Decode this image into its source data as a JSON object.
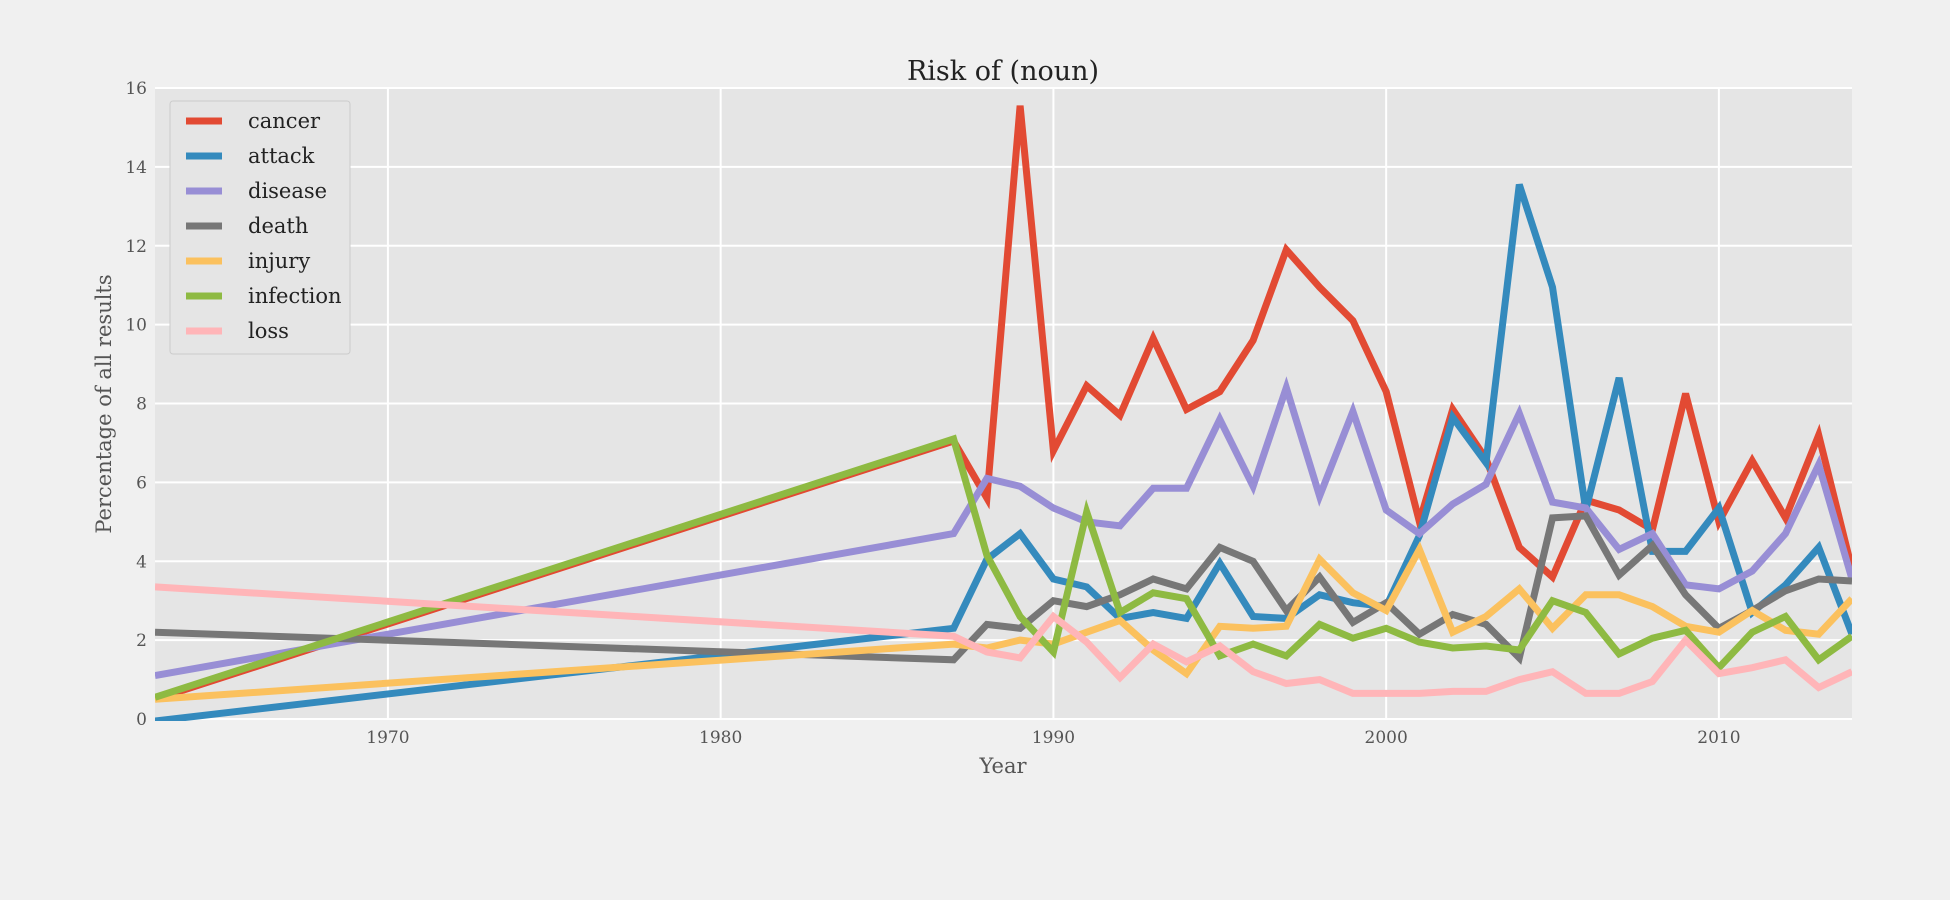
{
  "chart_data": {
    "type": "line",
    "title": "Risk of (noun)",
    "xlabel": "Year",
    "ylabel": "Percentage of all results",
    "xlim": [
      1963,
      2014
    ],
    "ylim": [
      0,
      16
    ],
    "xticks": [
      1970,
      1980,
      1990,
      2000,
      2010
    ],
    "yticks": [
      0,
      2,
      4,
      6,
      8,
      10,
      12,
      14,
      16
    ],
    "grid": true,
    "legend_position": "top-left",
    "x": [
      1963,
      1987,
      1988,
      1989,
      1990,
      1991,
      1992,
      1993,
      1994,
      1995,
      1996,
      1997,
      1998,
      1999,
      2000,
      2001,
      2002,
      2003,
      2004,
      2005,
      2006,
      2007,
      2008,
      2009,
      2010,
      2011,
      2012,
      2013,
      2014
    ],
    "series": [
      {
        "name": "cancer",
        "color": "#e24a33",
        "values": [
          0.5,
          7.05,
          5.6,
          15.55,
          6.8,
          8.45,
          7.7,
          9.65,
          7.85,
          8.3,
          9.6,
          11.9,
          10.95,
          10.1,
          8.3,
          5.0,
          7.85,
          6.6,
          4.35,
          3.6,
          5.55,
          5.3,
          4.8,
          8.25,
          5.0,
          6.55,
          5.1,
          7.2,
          3.8
        ]
      },
      {
        "name": "attack",
        "color": "#348abd",
        "values": [
          -0.05,
          2.3,
          4.05,
          4.7,
          3.55,
          3.35,
          2.55,
          2.7,
          2.55,
          3.95,
          2.6,
          2.55,
          3.15,
          2.95,
          2.85,
          4.65,
          7.65,
          6.5,
          13.55,
          10.95,
          5.3,
          8.65,
          4.25,
          4.25,
          5.35,
          2.7,
          3.4,
          4.35,
          2.15
        ]
      },
      {
        "name": "disease",
        "color": "#988ed5",
        "values": [
          1.1,
          4.7,
          6.1,
          5.9,
          5.35,
          5.0,
          4.9,
          5.85,
          5.85,
          7.6,
          5.9,
          8.4,
          5.65,
          7.8,
          5.3,
          4.7,
          5.45,
          5.95,
          7.75,
          5.5,
          5.35,
          4.3,
          4.7,
          3.4,
          3.3,
          3.75,
          4.7,
          6.45,
          3.55
        ]
      },
      {
        "name": "death",
        "color": "#777777",
        "values": [
          2.2,
          1.5,
          2.4,
          2.3,
          3.0,
          2.85,
          3.15,
          3.55,
          3.3,
          4.35,
          4.0,
          2.75,
          3.6,
          2.45,
          2.95,
          2.15,
          2.65,
          2.4,
          1.55,
          5.1,
          5.15,
          3.65,
          4.4,
          3.15,
          2.3,
          2.75,
          3.25,
          3.55,
          3.5
        ]
      },
      {
        "name": "injury",
        "color": "#fbc15e",
        "values": [
          0.5,
          1.9,
          1.8,
          2.0,
          1.9,
          2.2,
          2.5,
          1.75,
          1.15,
          2.35,
          2.3,
          2.35,
          4.05,
          3.2,
          2.75,
          4.3,
          2.2,
          2.6,
          3.3,
          2.3,
          3.15,
          3.15,
          2.85,
          2.35,
          2.2,
          2.75,
          2.25,
          2.15,
          3.05
        ]
      },
      {
        "name": "infection",
        "color": "#8eba42",
        "values": [
          0.55,
          7.1,
          4.15,
          2.6,
          1.7,
          5.25,
          2.7,
          3.2,
          3.05,
          1.6,
          1.9,
          1.6,
          2.4,
          2.05,
          2.3,
          1.95,
          1.8,
          1.85,
          1.75,
          3.0,
          2.7,
          1.65,
          2.05,
          2.25,
          1.3,
          2.2,
          2.6,
          1.5,
          2.1
        ]
      },
      {
        "name": "loss",
        "color": "#ffb5b8",
        "values": [
          3.35,
          2.1,
          1.7,
          1.55,
          2.6,
          1.95,
          1.05,
          1.9,
          1.45,
          1.85,
          1.2,
          0.9,
          1.0,
          0.65,
          0.65,
          0.65,
          0.7,
          0.7,
          1.0,
          1.2,
          0.65,
          0.65,
          0.95,
          2.0,
          1.15,
          1.3,
          1.5,
          0.8,
          1.2
        ]
      }
    ]
  }
}
